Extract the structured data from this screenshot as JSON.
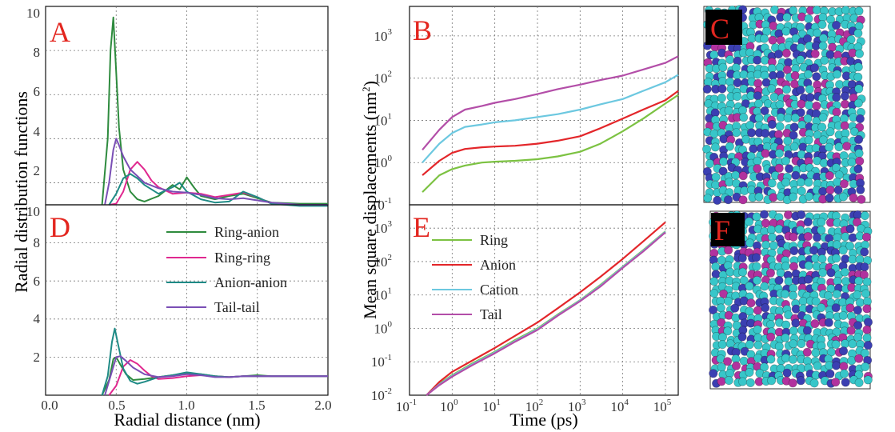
{
  "panels": {
    "A": {
      "letter": "A"
    },
    "B": {
      "letter": "B"
    },
    "C": {
      "letter": "C"
    },
    "D": {
      "letter": "D"
    },
    "E": {
      "letter": "E"
    },
    "F": {
      "letter": "F"
    }
  },
  "colors": {
    "ring_anion": "#2e8b3e",
    "ring_ring": "#e0288f",
    "anion_anion": "#1f8b86",
    "tail_tail": "#7a4fb5",
    "ring": "#7cc242",
    "anion": "#e3262a",
    "cation": "#6cc8e0",
    "tail": "#b34ea8",
    "atom_cyan": "#37c6c9",
    "atom_blue": "#3b3fb2",
    "atom_magenta": "#b1329e"
  },
  "chart_data": [
    {
      "panel": "A",
      "type": "line",
      "ylabel": "Radial distribution functions",
      "xlim": [
        0,
        2.0
      ],
      "ylim": [
        1,
        10
      ],
      "y_ticks": [
        "10",
        "8",
        "6",
        "4",
        "2"
      ],
      "grid": true,
      "series": [
        {
          "name": "Ring-anion",
          "x": [
            0.4,
            0.44,
            0.46,
            0.48,
            0.5,
            0.52,
            0.55,
            0.6,
            0.65,
            0.7,
            0.8,
            0.9,
            0.95,
            1.0,
            1.05,
            1.1,
            1.2,
            1.3,
            1.4,
            1.5,
            1.6,
            1.8,
            2.0
          ],
          "y": [
            1.0,
            4.0,
            8.0,
            9.5,
            7.0,
            4.5,
            2.6,
            1.6,
            1.25,
            1.15,
            1.4,
            1.9,
            1.7,
            2.25,
            1.8,
            1.4,
            1.25,
            1.4,
            1.5,
            1.3,
            1.1,
            1.05,
            1.05
          ]
        },
        {
          "name": "Ring-ring",
          "x": [
            0.45,
            0.5,
            0.55,
            0.6,
            0.65,
            0.7,
            0.75,
            0.8,
            0.9,
            1.0,
            1.1,
            1.2,
            1.3,
            1.4,
            1.5,
            1.6,
            1.8,
            2.0
          ],
          "y": [
            1.0,
            1.05,
            1.6,
            2.6,
            2.95,
            2.6,
            2.1,
            1.8,
            1.5,
            1.55,
            1.5,
            1.35,
            1.45,
            1.55,
            1.35,
            1.05,
            1.0,
            1.0
          ]
        },
        {
          "name": "Anion-anion",
          "x": [
            0.45,
            0.5,
            0.55,
            0.6,
            0.65,
            0.7,
            0.8,
            0.9,
            0.95,
            1.0,
            1.1,
            1.2,
            1.3,
            1.4,
            1.5,
            1.6,
            1.8,
            2.0
          ],
          "y": [
            1.0,
            1.5,
            2.2,
            2.4,
            2.2,
            1.9,
            1.5,
            1.8,
            2.0,
            1.6,
            1.25,
            1.1,
            1.15,
            1.6,
            1.35,
            1.05,
            0.95,
            0.95
          ]
        },
        {
          "name": "Tail-tail",
          "x": [
            0.42,
            0.45,
            0.48,
            0.5,
            0.52,
            0.55,
            0.6,
            0.7,
            0.8,
            0.9,
            1.0,
            1.1,
            1.2,
            1.3,
            1.4,
            1.5,
            1.6,
            1.8,
            2.0
          ],
          "y": [
            1.0,
            2.0,
            3.5,
            4.0,
            3.7,
            3.2,
            2.6,
            2.0,
            1.75,
            1.6,
            1.55,
            1.45,
            1.3,
            1.25,
            1.3,
            1.2,
            1.1,
            1.0,
            1.0
          ]
        }
      ]
    },
    {
      "panel": "D",
      "type": "line",
      "xlabel": "Radial distance (nm)",
      "xlim": [
        0,
        2.0
      ],
      "ylim": [
        0,
        10
      ],
      "x_ticks": [
        "0.0",
        "0.5",
        "1.0",
        "1.5",
        "2.0"
      ],
      "y_ticks": [
        "8",
        "6",
        "4",
        "2"
      ],
      "grid": true,
      "legend": "top-right",
      "series": [
        {
          "name": "Ring-anion",
          "x": [
            0.4,
            0.45,
            0.48,
            0.5,
            0.53,
            0.57,
            0.62,
            0.7,
            0.8,
            0.9,
            1.0,
            1.1,
            1.2,
            1.3,
            1.4,
            1.5,
            1.6,
            1.8,
            2.0
          ],
          "y": [
            0.0,
            0.8,
            1.9,
            2.0,
            1.6,
            1.1,
            0.8,
            0.85,
            0.95,
            1.05,
            1.15,
            1.1,
            1.0,
            0.95,
            1.0,
            1.05,
            1.0,
            1.0,
            1.0
          ]
        },
        {
          "name": "Ring-ring",
          "x": [
            0.45,
            0.5,
            0.55,
            0.6,
            0.65,
            0.7,
            0.75,
            0.8,
            0.9,
            1.0,
            1.1,
            1.2,
            1.3,
            1.4,
            1.5,
            1.6,
            1.8,
            2.0
          ],
          "y": [
            0.0,
            0.5,
            1.5,
            1.85,
            1.65,
            1.3,
            1.0,
            0.85,
            0.9,
            1.0,
            1.05,
            1.0,
            0.95,
            1.0,
            1.0,
            1.0,
            1.0,
            1.0
          ]
        },
        {
          "name": "Anion-anion",
          "x": [
            0.4,
            0.44,
            0.47,
            0.49,
            0.51,
            0.55,
            0.6,
            0.65,
            0.7,
            0.8,
            0.9,
            1.0,
            1.1,
            1.2,
            1.3,
            1.4,
            1.6,
            1.8,
            2.0
          ],
          "y": [
            0.0,
            1.0,
            2.8,
            3.5,
            2.8,
            1.4,
            0.75,
            0.6,
            0.7,
            0.95,
            1.05,
            1.2,
            1.1,
            1.0,
            0.95,
            1.0,
            1.0,
            1.0,
            1.0
          ]
        },
        {
          "name": "Tail-tail",
          "x": [
            0.42,
            0.46,
            0.5,
            0.53,
            0.57,
            0.62,
            0.7,
            0.8,
            0.9,
            1.0,
            1.1,
            1.2,
            1.3,
            1.4,
            1.5,
            1.6,
            1.8,
            2.0
          ],
          "y": [
            0.0,
            1.0,
            2.0,
            2.05,
            1.8,
            1.45,
            1.1,
            0.95,
            1.0,
            1.1,
            1.05,
            0.95,
            0.95,
            1.0,
            1.0,
            1.0,
            1.0,
            1.0
          ]
        }
      ]
    },
    {
      "panel": "B",
      "type": "line",
      "ylabel": "Mean square displacements (nm",
      "ylabel_sup": "2",
      "ylabel_end": ")",
      "xscale": "log",
      "yscale": "log",
      "xlim": [
        0.1,
        200000
      ],
      "ylim": [
        0.1,
        5000
      ],
      "y_ticks": [
        {
          "base": "10",
          "exp": "3"
        },
        {
          "base": "10",
          "exp": "2"
        },
        {
          "base": "10",
          "exp": "1"
        },
        {
          "base": "10",
          "exp": "0"
        },
        {
          "base": "10",
          "exp": "-1"
        }
      ],
      "grid": true,
      "series": [
        {
          "name": "Ring",
          "x": [
            0.2,
            0.5,
            1,
            2,
            5,
            10,
            30,
            100,
            300,
            1000,
            3000,
            10000,
            30000,
            100000,
            200000
          ],
          "y": [
            0.2,
            0.5,
            0.7,
            0.85,
            1.0,
            1.05,
            1.1,
            1.2,
            1.4,
            1.8,
            2.8,
            5.5,
            11,
            25,
            40
          ]
        },
        {
          "name": "Anion",
          "x": [
            0.2,
            0.5,
            1,
            2,
            5,
            10,
            30,
            100,
            300,
            1000,
            3000,
            10000,
            30000,
            100000,
            200000
          ],
          "y": [
            0.5,
            1.1,
            1.7,
            2.1,
            2.3,
            2.4,
            2.5,
            2.8,
            3.3,
            4.2,
            6.5,
            11,
            18,
            30,
            50
          ]
        },
        {
          "name": "Cation",
          "x": [
            0.2,
            0.5,
            1,
            2,
            5,
            10,
            30,
            100,
            300,
            1000,
            3000,
            10000,
            30000,
            100000,
            200000
          ],
          "y": [
            1.0,
            2.8,
            5.0,
            7.0,
            8.0,
            9.0,
            10,
            12,
            14,
            18,
            24,
            32,
            50,
            80,
            120
          ]
        },
        {
          "name": "Tail",
          "x": [
            0.2,
            0.5,
            1,
            2,
            5,
            10,
            30,
            100,
            300,
            1000,
            3000,
            10000,
            30000,
            100000,
            200000
          ],
          "y": [
            2.0,
            6.0,
            12,
            18,
            22,
            26,
            32,
            42,
            55,
            70,
            90,
            115,
            160,
            230,
            330
          ]
        }
      ]
    },
    {
      "panel": "E",
      "type": "line",
      "xlabel": "Time (ps)",
      "xscale": "log",
      "yscale": "log",
      "xlim": [
        0.1,
        200000
      ],
      "ylim": [
        0.01,
        5000
      ],
      "x_ticks": [
        {
          "base": "10",
          "exp": "-1"
        },
        {
          "base": "10",
          "exp": "0"
        },
        {
          "base": "10",
          "exp": "1"
        },
        {
          "base": "10",
          "exp": "2"
        },
        {
          "base": "10",
          "exp": "3"
        },
        {
          "base": "10",
          "exp": "4"
        },
        {
          "base": "10",
          "exp": "5"
        }
      ],
      "y_ticks": [
        {
          "base": "10",
          "exp": "3"
        },
        {
          "base": "10",
          "exp": "2"
        },
        {
          "base": "10",
          "exp": "1"
        },
        {
          "base": "10",
          "exp": "0"
        },
        {
          "base": "10",
          "exp": "-1"
        },
        {
          "base": "10",
          "exp": "-2"
        }
      ],
      "grid": true,
      "legend": "top-left",
      "series": [
        {
          "name": "Ring",
          "x": [
            0.25,
            0.5,
            1,
            3,
            10,
            30,
            100,
            300,
            1000,
            3000,
            10000,
            30000,
            100000
          ],
          "y": [
            0.01,
            0.022,
            0.04,
            0.09,
            0.2,
            0.45,
            1.0,
            2.6,
            7.0,
            20,
            70,
            220,
            800
          ]
        },
        {
          "name": "Anion",
          "x": [
            0.25,
            0.5,
            1,
            3,
            10,
            30,
            100,
            300,
            1000,
            3000,
            10000,
            30000,
            100000
          ],
          "y": [
            0.01,
            0.025,
            0.05,
            0.11,
            0.26,
            0.6,
            1.5,
            4.0,
            12,
            35,
            120,
            400,
            1500
          ]
        },
        {
          "name": "Cation",
          "x": [
            0.25,
            0.5,
            1,
            3,
            10,
            30,
            100,
            300,
            1000,
            3000,
            10000,
            30000,
            100000
          ],
          "y": [
            0.01,
            0.021,
            0.038,
            0.085,
            0.19,
            0.42,
            0.95,
            2.5,
            6.8,
            19,
            68,
            210,
            780
          ]
        },
        {
          "name": "Tail",
          "x": [
            0.25,
            0.5,
            1,
            3,
            10,
            30,
            100,
            300,
            1000,
            3000,
            10000,
            30000,
            100000
          ],
          "y": [
            0.01,
            0.02,
            0.036,
            0.08,
            0.18,
            0.4,
            0.9,
            2.4,
            6.5,
            18,
            65,
            200,
            750
          ]
        }
      ]
    }
  ]
}
